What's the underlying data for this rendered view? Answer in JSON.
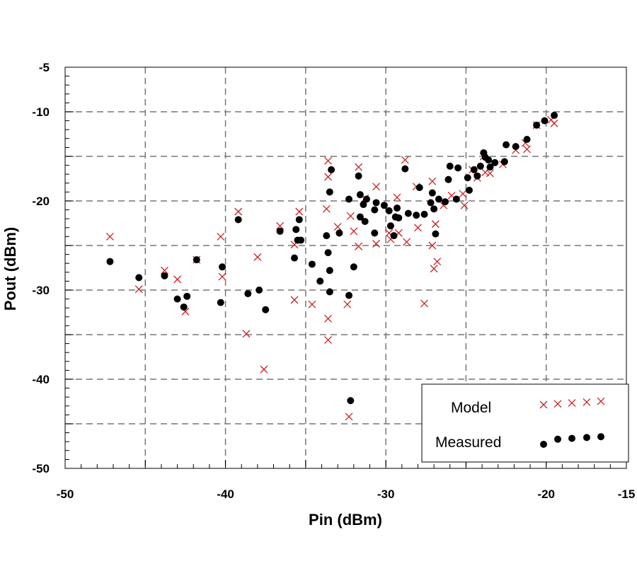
{
  "chart_data": {
    "type": "scatter",
    "title": "",
    "xlabel": "Pin (dBm)",
    "ylabel": "Pout (dBm)",
    "xlim": [
      -50,
      -15
    ],
    "ylim": [
      -50,
      -5
    ],
    "xticks": [
      -50,
      -40,
      -30,
      -20,
      -15
    ],
    "xtick_labels": [
      "-50",
      "-40",
      "-30",
      "-20",
      "-15"
    ],
    "yticks": [
      -5,
      -10,
      -20,
      -30,
      -40,
      -50
    ],
    "ytick_labels": [
      "-5",
      "-10",
      "-20",
      "-30",
      "-40",
      "-50"
    ],
    "grid": true,
    "grid_style": "dashed",
    "legend_position": "bottom-right",
    "series": [
      {
        "name": "Model",
        "marker": "x",
        "color": "#cc2222",
        "points": [
          [
            -47.2,
            -24.0
          ],
          [
            -45.4,
            -29.9
          ],
          [
            -43.8,
            -27.8
          ],
          [
            -43.0,
            -28.8
          ],
          [
            -42.5,
            -32.4
          ],
          [
            -41.8,
            -26.6
          ],
          [
            -40.3,
            -24.0
          ],
          [
            -40.2,
            -28.5
          ],
          [
            -39.2,
            -21.2
          ],
          [
            -38.7,
            -34.9
          ],
          [
            -38.0,
            -26.3
          ],
          [
            -37.6,
            -38.9
          ],
          [
            -36.6,
            -22.8
          ],
          [
            -35.7,
            -24.9
          ],
          [
            -35.7,
            -31.1
          ],
          [
            -35.4,
            -21.2
          ],
          [
            -34.6,
            -31.6
          ],
          [
            -33.7,
            -20.9
          ],
          [
            -33.6,
            -15.5
          ],
          [
            -33.6,
            -17.3
          ],
          [
            -33.6,
            -33.2
          ],
          [
            -33.6,
            -35.6
          ],
          [
            -33.0,
            -22.9
          ],
          [
            -32.4,
            -31.6
          ],
          [
            -32.3,
            -44.2
          ],
          [
            -32.2,
            -21.7
          ],
          [
            -32.0,
            -23.4
          ],
          [
            -31.7,
            -16.2
          ],
          [
            -31.7,
            -25.1
          ],
          [
            -31.3,
            -19.7
          ],
          [
            -30.6,
            -18.4
          ],
          [
            -30.6,
            -24.8
          ],
          [
            -29.8,
            -23.6
          ],
          [
            -29.7,
            -24.3
          ],
          [
            -29.3,
            -19.6
          ],
          [
            -29.2,
            -23.6
          ],
          [
            -28.8,
            -15.4
          ],
          [
            -28.7,
            -24.6
          ],
          [
            -28.1,
            -18.4
          ],
          [
            -28.0,
            -23.0
          ],
          [
            -27.6,
            -31.5
          ],
          [
            -27.1,
            -17.8
          ],
          [
            -27.1,
            -25.0
          ],
          [
            -27.0,
            -27.6
          ],
          [
            -26.9,
            -22.6
          ],
          [
            -26.8,
            -26.8
          ],
          [
            -26.4,
            -20.5
          ],
          [
            -25.9,
            -19.4
          ],
          [
            -25.2,
            -19.2
          ],
          [
            -25.1,
            -20.5
          ],
          [
            -24.6,
            -16.5
          ],
          [
            -24.3,
            -17.4
          ],
          [
            -23.9,
            -15.0
          ],
          [
            -23.8,
            -16.8
          ],
          [
            -23.5,
            -16.9
          ],
          [
            -22.7,
            -15.9
          ],
          [
            -21.9,
            -14.3
          ],
          [
            -21.3,
            -13.5
          ],
          [
            -21.2,
            -14.2
          ],
          [
            -20.6,
            -11.5
          ],
          [
            -20.1,
            -43.8
          ],
          [
            -19.7,
            -10.9
          ],
          [
            -19.5,
            -11.3
          ]
        ]
      },
      {
        "name": "Measured",
        "marker": "circle",
        "color": "#000000",
        "points": [
          [
            -47.2,
            -26.8
          ],
          [
            -45.4,
            -28.6
          ],
          [
            -43.8,
            -28.4
          ],
          [
            -43.0,
            -31.0
          ],
          [
            -42.6,
            -31.9
          ],
          [
            -42.4,
            -30.7
          ],
          [
            -41.8,
            -26.6
          ],
          [
            -40.3,
            -31.4
          ],
          [
            -40.2,
            -27.4
          ],
          [
            -39.2,
            -22.1
          ],
          [
            -38.6,
            -30.4
          ],
          [
            -37.9,
            -30.0
          ],
          [
            -37.5,
            -32.2
          ],
          [
            -36.6,
            -23.4
          ],
          [
            -35.7,
            -26.4
          ],
          [
            -35.6,
            -23.2
          ],
          [
            -35.5,
            -24.4
          ],
          [
            -35.4,
            -22.1
          ],
          [
            -35.3,
            -24.4
          ],
          [
            -34.6,
            -27.1
          ],
          [
            -34.1,
            -29.0
          ],
          [
            -33.7,
            -23.9
          ],
          [
            -33.6,
            -25.8
          ],
          [
            -33.5,
            -30.2
          ],
          [
            -33.5,
            -27.8
          ],
          [
            -33.4,
            -16.5
          ],
          [
            -33.5,
            -19.0
          ],
          [
            -32.9,
            -23.6
          ],
          [
            -32.3,
            -19.8
          ],
          [
            -32.3,
            -30.6
          ],
          [
            -32.2,
            -42.4
          ],
          [
            -32.0,
            -27.4
          ],
          [
            -31.7,
            -17.2
          ],
          [
            -31.6,
            -21.8
          ],
          [
            -31.6,
            -19.3
          ],
          [
            -31.4,
            -20.4
          ],
          [
            -31.3,
            -22.3
          ],
          [
            -31.2,
            -19.8
          ],
          [
            -30.7,
            -21.0
          ],
          [
            -30.7,
            -23.6
          ],
          [
            -30.6,
            -20.2
          ],
          [
            -30.1,
            -20.5
          ],
          [
            -29.8,
            -21.1
          ],
          [
            -29.7,
            -22.8
          ],
          [
            -29.5,
            -23.9
          ],
          [
            -29.4,
            -21.8
          ],
          [
            -29.3,
            -20.8
          ],
          [
            -29.2,
            -21.9
          ],
          [
            -28.8,
            -16.4
          ],
          [
            -28.6,
            -21.4
          ],
          [
            -28.1,
            -21.6
          ],
          [
            -27.9,
            -18.5
          ],
          [
            -27.6,
            -21.5
          ],
          [
            -27.2,
            -20.2
          ],
          [
            -27.1,
            -19.1
          ],
          [
            -27.0,
            -20.9
          ],
          [
            -26.9,
            -23.7
          ],
          [
            -26.7,
            -19.8
          ],
          [
            -26.3,
            -20.1
          ],
          [
            -26.1,
            -17.6
          ],
          [
            -26.0,
            -16.1
          ],
          [
            -25.6,
            -19.8
          ],
          [
            -25.5,
            -16.3
          ],
          [
            -24.9,
            -17.4
          ],
          [
            -24.8,
            -18.8
          ],
          [
            -24.5,
            -16.5
          ],
          [
            -24.3,
            -17.2
          ],
          [
            -24.1,
            -16.1
          ],
          [
            -23.9,
            -14.6
          ],
          [
            -23.8,
            -15.1
          ],
          [
            -23.6,
            -15.4
          ],
          [
            -23.5,
            -16.2
          ],
          [
            -23.2,
            -15.7
          ],
          [
            -22.6,
            -15.6
          ],
          [
            -22.5,
            -13.7
          ],
          [
            -21.9,
            -13.9
          ],
          [
            -21.2,
            -13.1
          ],
          [
            -20.6,
            -11.5
          ],
          [
            -20.1,
            -11.0
          ],
          [
            -20.0,
            -47.6
          ],
          [
            -19.5,
            -10.4
          ]
        ]
      }
    ],
    "legend": [
      {
        "label": "Model",
        "marker": "x",
        "color": "#cc2222"
      },
      {
        "label": "Measured",
        "marker": "circle",
        "color": "#000000"
      }
    ]
  }
}
